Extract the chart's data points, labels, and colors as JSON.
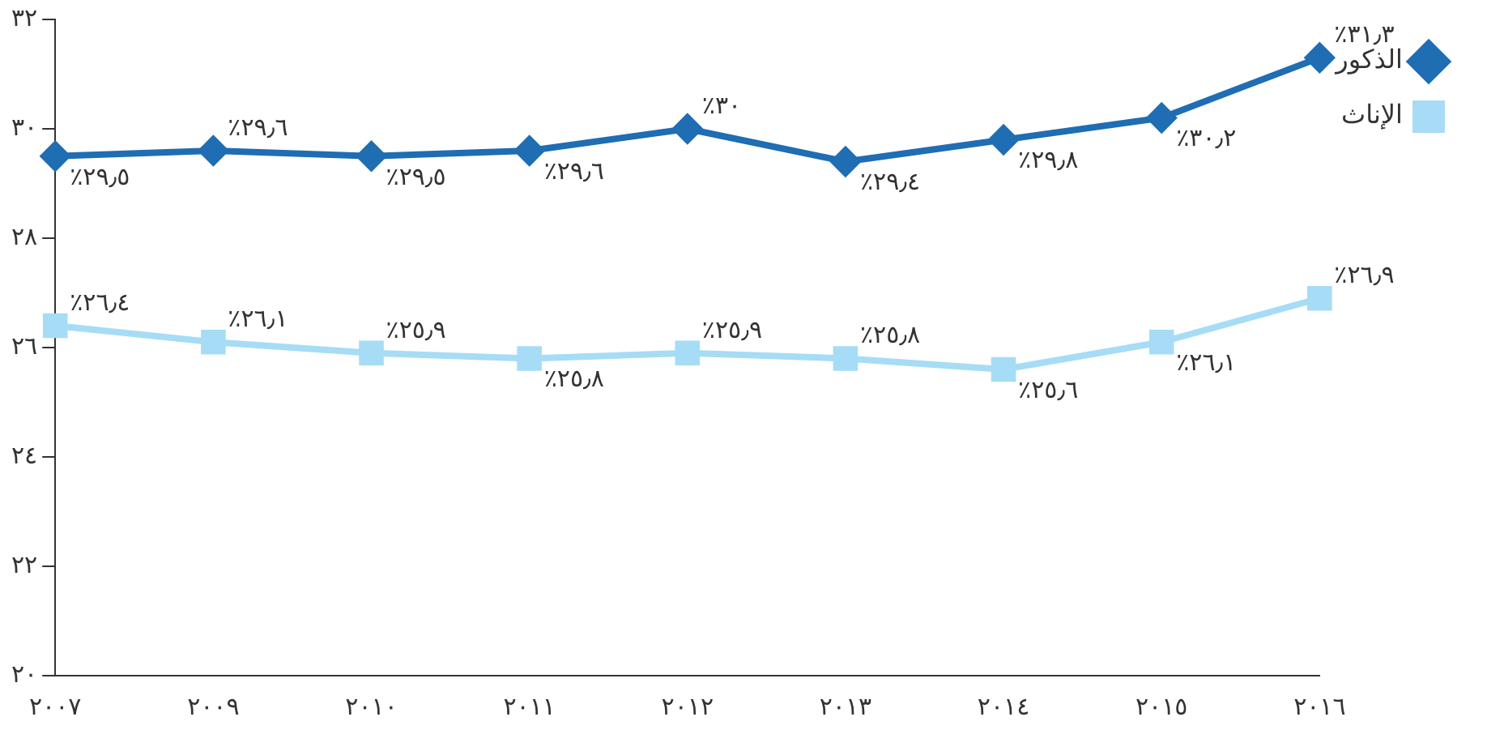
{
  "chart_data": {
    "type": "line",
    "categories": [
      "٢٠٠٧",
      "٢٠٠٩",
      "٢٠١٠",
      "٢٠١١",
      "٢٠١٢",
      "٢٠١٣",
      "٢٠١٤",
      "٢٠١٥",
      "٢٠١٦"
    ],
    "series": [
      {
        "name": "الذكور",
        "color": "#1f6db3",
        "marker": "diamond",
        "values": [
          29.5,
          29.6,
          29.5,
          29.6,
          30,
          29.4,
          29.8,
          30.2,
          31.3
        ],
        "value_labels": [
          "٪٢٩٫٥",
          "٪٢٩٫٦",
          "٪٢٩٫٥",
          "٪٢٩٫٦",
          "٪٣٠",
          "٪٢٩٫٤",
          "٪٢٩٫٨",
          "٪٣٠٫٢",
          "٪٣١٫٣"
        ]
      },
      {
        "name": "الإناث",
        "color": "#a6dcf6",
        "marker": "square",
        "values": [
          26.4,
          26.1,
          25.9,
          25.8,
          25.9,
          25.8,
          25.6,
          26.1,
          26.9
        ],
        "value_labels": [
          "٪٢٦٫٤",
          "٪٢٦٫١",
          "٪٢٥٫٩",
          "٪٢٥٫٨",
          "٪٢٥٫٩",
          "٪٢٥٫٨",
          "٪٢٥٫٦",
          "٪٢٦٫١",
          "٪٢٦٫٩"
        ]
      }
    ],
    "ylim": [
      20,
      32
    ],
    "yticks": [
      {
        "value": 20,
        "label": "٢٠"
      },
      {
        "value": 22,
        "label": "٢٢"
      },
      {
        "value": 24,
        "label": "٢٤"
      },
      {
        "value": 26,
        "label": "٢٦"
      },
      {
        "value": 28,
        "label": "٢٨"
      },
      {
        "value": 30,
        "label": "٣٠"
      },
      {
        "value": 32,
        "label": "٣٢"
      }
    ],
    "grid": false,
    "legend": "right"
  }
}
